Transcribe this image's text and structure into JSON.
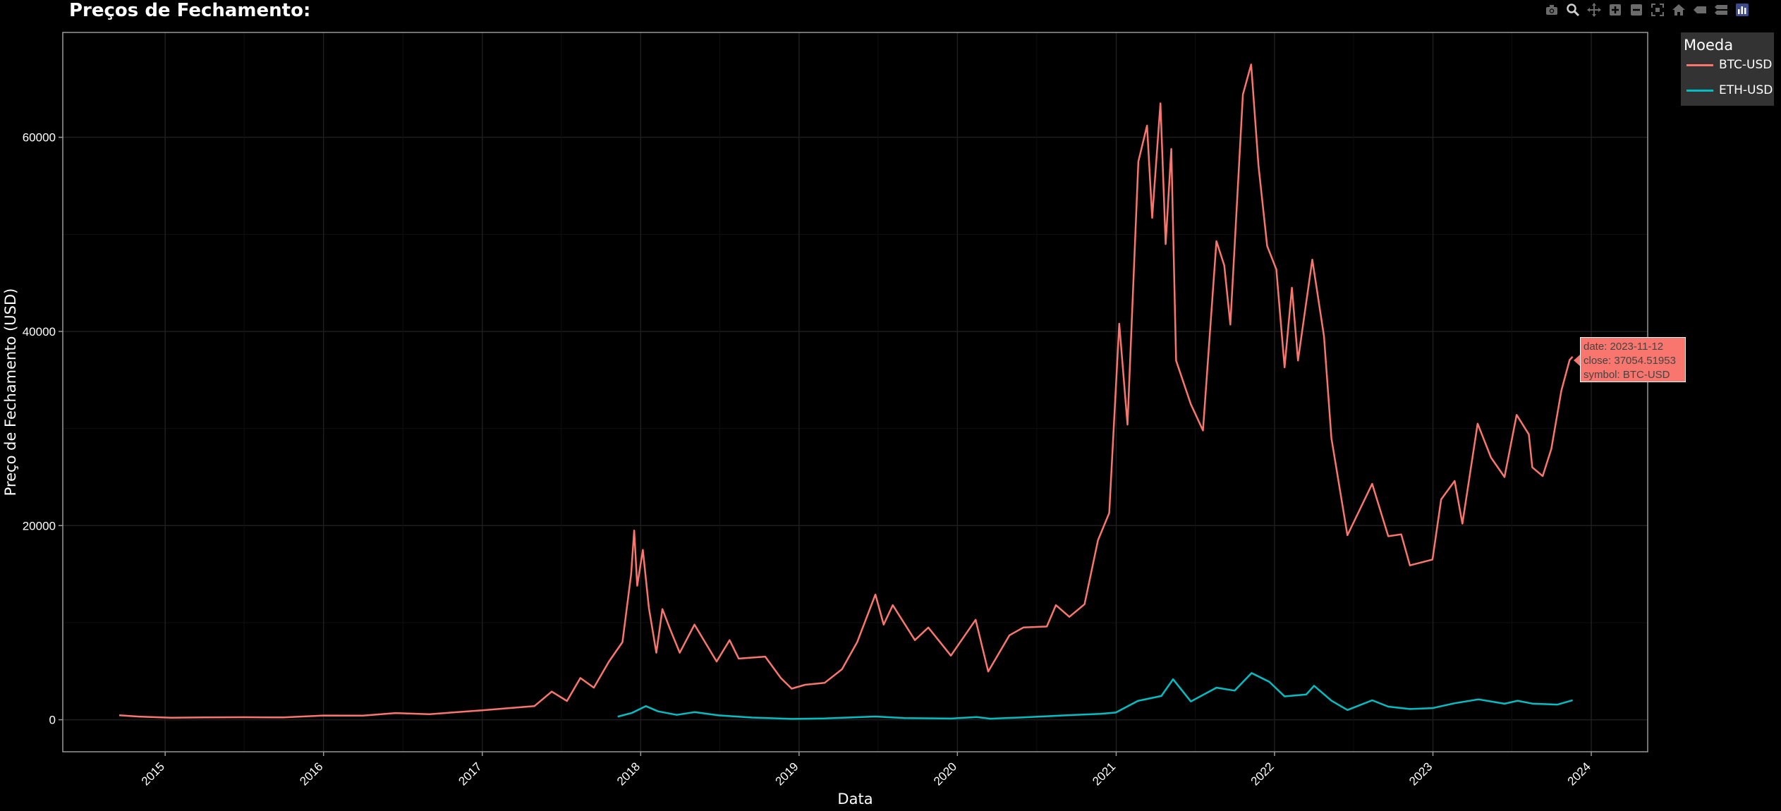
{
  "title": "Preços de Fechamento:",
  "modebar": [
    "camera-icon",
    "zoom-icon",
    "pan-icon",
    "zoom-in-icon",
    "zoom-out-icon",
    "autoscale-icon",
    "home-icon",
    "hover-closest-icon",
    "hover-compare-icon",
    "plotly-logo-icon"
  ],
  "legend": {
    "title": "Moeda",
    "items": [
      {
        "label": "BTC-USD",
        "color": "#F8766D"
      },
      {
        "label": "ETH-USD",
        "color": "#00BFC4"
      }
    ]
  },
  "tooltip": {
    "line1": "date: 2023-11-12",
    "line2": "close: 37054.51953",
    "line3": "symbol: BTC-USD"
  },
  "colors": {
    "background": "#000000",
    "btc": "#F8766D",
    "eth": "#00BFC4",
    "grid": "#1e1e1e",
    "frame": "#999999"
  },
  "chart_data": {
    "type": "line",
    "title": "Preços de Fechamento:",
    "xlabel": "Data",
    "ylabel": "Preço de Fechamento (USD)",
    "x_axis": "date",
    "xlim": [
      "2014-05-10",
      "2024-05-10"
    ],
    "ylim": [
      -3300,
      70800
    ],
    "x_ticks": [
      "2015",
      "2016",
      "2017",
      "2018",
      "2019",
      "2020",
      "2021",
      "2022",
      "2023",
      "2024"
    ],
    "y_ticks": [
      0,
      20000,
      40000,
      60000
    ],
    "grid": true,
    "legend_position": "right",
    "series": [
      {
        "name": "BTC-USD",
        "color": "#F8766D",
        "points": [
          [
            "2014-09-17",
            457
          ],
          [
            "2014-11-01",
            325
          ],
          [
            "2015-01-15",
            210
          ],
          [
            "2015-04-01",
            245
          ],
          [
            "2015-07-01",
            260
          ],
          [
            "2015-10-01",
            237
          ],
          [
            "2016-01-01",
            434
          ],
          [
            "2016-04-01",
            417
          ],
          [
            "2016-06-15",
            690
          ],
          [
            "2016-09-01",
            575
          ],
          [
            "2016-12-31",
            963
          ],
          [
            "2017-03-01",
            1190
          ],
          [
            "2017-05-01",
            1400
          ],
          [
            "2017-06-10",
            2900
          ],
          [
            "2017-07-15",
            1930
          ],
          [
            "2017-08-15",
            4300
          ],
          [
            "2017-09-15",
            3300
          ],
          [
            "2017-10-20",
            6000
          ],
          [
            "2017-11-20",
            8000
          ],
          [
            "2017-12-10",
            15000
          ],
          [
            "2017-12-17",
            19497
          ],
          [
            "2017-12-24",
            13800
          ],
          [
            "2018-01-06",
            17500
          ],
          [
            "2018-01-20",
            11500
          ],
          [
            "2018-02-06",
            6900
          ],
          [
            "2018-02-20",
            11400
          ],
          [
            "2018-03-10",
            9300
          ],
          [
            "2018-04-01",
            6900
          ],
          [
            "2018-05-05",
            9800
          ],
          [
            "2018-06-25",
            6000
          ],
          [
            "2018-07-25",
            8200
          ],
          [
            "2018-08-15",
            6300
          ],
          [
            "2018-10-15",
            6500
          ],
          [
            "2018-11-20",
            4300
          ],
          [
            "2018-12-15",
            3200
          ],
          [
            "2019-01-15",
            3600
          ],
          [
            "2019-03-01",
            3800
          ],
          [
            "2019-04-10",
            5200
          ],
          [
            "2019-05-15",
            8000
          ],
          [
            "2019-06-26",
            12900
          ],
          [
            "2019-07-15",
            9800
          ],
          [
            "2019-08-05",
            11800
          ],
          [
            "2019-09-25",
            8200
          ],
          [
            "2019-10-26",
            9500
          ],
          [
            "2019-12-17",
            6600
          ],
          [
            "2020-02-12",
            10300
          ],
          [
            "2020-03-12",
            4970
          ],
          [
            "2020-04-30",
            8700
          ],
          [
            "2020-06-01",
            9500
          ],
          [
            "2020-07-25",
            9600
          ],
          [
            "2020-08-15",
            11800
          ],
          [
            "2020-09-15",
            10600
          ],
          [
            "2020-10-20",
            11900
          ],
          [
            "2020-11-20",
            18500
          ],
          [
            "2020-12-16",
            21300
          ],
          [
            "2021-01-08",
            40800
          ],
          [
            "2021-01-27",
            30400
          ],
          [
            "2021-02-21",
            57500
          ],
          [
            "2021-03-13",
            61200
          ],
          [
            "2021-03-25",
            51700
          ],
          [
            "2021-04-13",
            63500
          ],
          [
            "2021-04-25",
            49000
          ],
          [
            "2021-05-08",
            58800
          ],
          [
            "2021-05-19",
            37000
          ],
          [
            "2021-06-22",
            32500
          ],
          [
            "2021-07-20",
            29800
          ],
          [
            "2021-08-20",
            49300
          ],
          [
            "2021-09-07",
            46800
          ],
          [
            "2021-09-21",
            40700
          ],
          [
            "2021-10-20",
            64400
          ],
          [
            "2021-11-08",
            67500
          ],
          [
            "2021-11-25",
            57100
          ],
          [
            "2021-12-15",
            48800
          ],
          [
            "2022-01-05",
            46400
          ],
          [
            "2022-01-24",
            36300
          ],
          [
            "2022-02-10",
            44500
          ],
          [
            "2022-02-24",
            37000
          ],
          [
            "2022-03-29",
            47400
          ],
          [
            "2022-04-25",
            39500
          ],
          [
            "2022-05-12",
            29000
          ],
          [
            "2022-06-18",
            19000
          ],
          [
            "2022-08-14",
            24300
          ],
          [
            "2022-09-20",
            18900
          ],
          [
            "2022-10-20",
            19100
          ],
          [
            "2022-11-09",
            15900
          ],
          [
            "2022-12-31",
            16500
          ],
          [
            "2023-01-20",
            22700
          ],
          [
            "2023-02-20",
            24600
          ],
          [
            "2023-03-10",
            20200
          ],
          [
            "2023-04-14",
            30500
          ],
          [
            "2023-05-15",
            27000
          ],
          [
            "2023-06-15",
            25000
          ],
          [
            "2023-07-13",
            31400
          ],
          [
            "2023-08-10",
            29400
          ],
          [
            "2023-08-18",
            26000
          ],
          [
            "2023-09-11",
            25100
          ],
          [
            "2023-10-01",
            27900
          ],
          [
            "2023-10-24",
            33900
          ],
          [
            "2023-11-12",
            37054.51953
          ],
          [
            "2023-11-19",
            37400
          ]
        ]
      },
      {
        "name": "ETH-USD",
        "color": "#00BFC4",
        "points": [
          [
            "2017-11-09",
            320
          ],
          [
            "2017-12-12",
            700
          ],
          [
            "2018-01-13",
            1400
          ],
          [
            "2018-02-10",
            860
          ],
          [
            "2018-03-25",
            500
          ],
          [
            "2018-05-05",
            780
          ],
          [
            "2018-06-30",
            450
          ],
          [
            "2018-09-15",
            220
          ],
          [
            "2018-12-15",
            85
          ],
          [
            "2019-03-01",
            135
          ],
          [
            "2019-06-26",
            330
          ],
          [
            "2019-09-01",
            175
          ],
          [
            "2019-12-18",
            125
          ],
          [
            "2020-02-14",
            280
          ],
          [
            "2020-03-16",
            110
          ],
          [
            "2020-06-01",
            240
          ],
          [
            "2020-09-01",
            440
          ],
          [
            "2020-11-25",
            610
          ],
          [
            "2020-12-31",
            740
          ],
          [
            "2021-02-20",
            1940
          ],
          [
            "2021-04-15",
            2450
          ],
          [
            "2021-05-12",
            4170
          ],
          [
            "2021-06-22",
            1880
          ],
          [
            "2021-08-20",
            3300
          ],
          [
            "2021-10-01",
            3000
          ],
          [
            "2021-11-09",
            4810
          ],
          [
            "2021-12-20",
            3900
          ],
          [
            "2022-01-24",
            2400
          ],
          [
            "2022-03-15",
            2600
          ],
          [
            "2022-04-02",
            3500
          ],
          [
            "2022-05-12",
            1960
          ],
          [
            "2022-06-18",
            1000
          ],
          [
            "2022-08-14",
            2000
          ],
          [
            "2022-09-20",
            1350
          ],
          [
            "2022-11-09",
            1100
          ],
          [
            "2022-12-31",
            1200
          ],
          [
            "2023-02-20",
            1700
          ],
          [
            "2023-04-16",
            2100
          ],
          [
            "2023-06-15",
            1650
          ],
          [
            "2023-07-15",
            1950
          ],
          [
            "2023-08-18",
            1660
          ],
          [
            "2023-10-15",
            1560
          ],
          [
            "2023-11-19",
            2010
          ]
        ]
      }
    ]
  }
}
